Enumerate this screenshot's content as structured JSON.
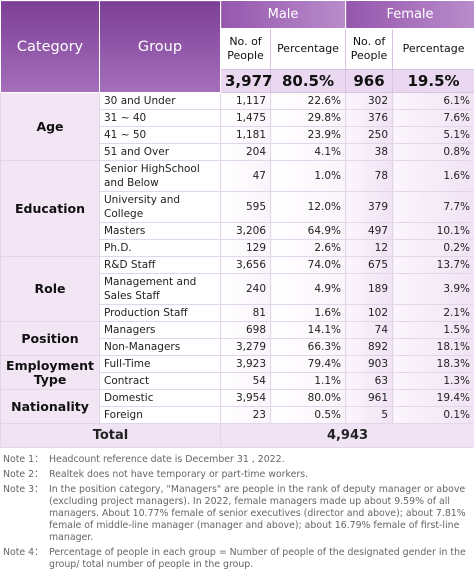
{
  "table": {
    "header": {
      "category": "Category",
      "group": "Group",
      "male": "Male",
      "female": "Female",
      "columns": [
        "No. of People",
        "Percentage",
        "No. of People",
        "Percentage"
      ],
      "totals": [
        "3,977",
        "80.5%",
        "966",
        "19.5%"
      ]
    },
    "sections": [
      {
        "category": "Age",
        "rows": [
          [
            "30 and Under",
            "1,117",
            "22.6%",
            "302",
            "6.1%"
          ],
          [
            "31 ~ 40",
            "1,475",
            "29.8%",
            "376",
            "7.6%"
          ],
          [
            "41 ~ 50",
            "1,181",
            "23.9%",
            "250",
            "5.1%"
          ],
          [
            "51 and Over",
            "204",
            "4.1%",
            "38",
            "0.8%"
          ]
        ]
      },
      {
        "category": "Education",
        "rows": [
          [
            "Senior HighSchool and Below",
            "47",
            "1.0%",
            "78",
            "1.6%"
          ],
          [
            "University and College",
            "595",
            "12.0%",
            "379",
            "7.7%"
          ],
          [
            "Masters",
            "3,206",
            "64.9%",
            "497",
            "10.1%"
          ],
          [
            "Ph.D.",
            "129",
            "2.6%",
            "12",
            "0.2%"
          ]
        ]
      },
      {
        "category": "Role",
        "rows": [
          [
            "R&D Staff",
            "3,656",
            "74.0%",
            "675",
            "13.7%"
          ],
          [
            "Management and Sales Staff",
            "240",
            "4.9%",
            "189",
            "3.9%"
          ],
          [
            "Production Staff",
            "81",
            "1.6%",
            "102",
            "2.1%"
          ]
        ]
      },
      {
        "category": "Position",
        "rows": [
          [
            "Managers",
            "698",
            "14.1%",
            "74",
            "1.5%"
          ],
          [
            "Non-Managers",
            "3,279",
            "66.3%",
            "892",
            "18.1%"
          ]
        ]
      },
      {
        "category": "Employment Type",
        "rows": [
          [
            "Full-Time",
            "3,923",
            "79.4%",
            "903",
            "18.3%"
          ],
          [
            "Contract",
            "54",
            "1.1%",
            "63",
            "1.3%"
          ]
        ]
      },
      {
        "category": "Nationality",
        "rows": [
          [
            "Domestic",
            "3,954",
            "80.0%",
            "961",
            "19.4%"
          ],
          [
            "Foreign",
            "23",
            "0.5%",
            "5",
            "0.1%"
          ]
        ]
      }
    ],
    "total": {
      "label": "Total",
      "value": "4,943"
    },
    "notes": [
      {
        "label": "Note 1：",
        "text": "Headcount reference date is December 31 , 2022."
      },
      {
        "label": "Note 2：",
        "text": "Realtek does not have temporary or part-time workers."
      },
      {
        "label": "Note 3：",
        "text": "In the position category, \"Managers\" are people in the rank of deputy manager or above (excluding project managers). In 2022, female managers made up about 9.59% of all managers. About 10.77% female of senior executives (director and above); about 7.81% female of middle-line manager (manager and above); about 16.79% female of first-line manager."
      },
      {
        "label": "Note 4：",
        "text": "Percentage of people in each group = Number of people of the designated gender in the group/ total number of people in the group."
      }
    ]
  }
}
